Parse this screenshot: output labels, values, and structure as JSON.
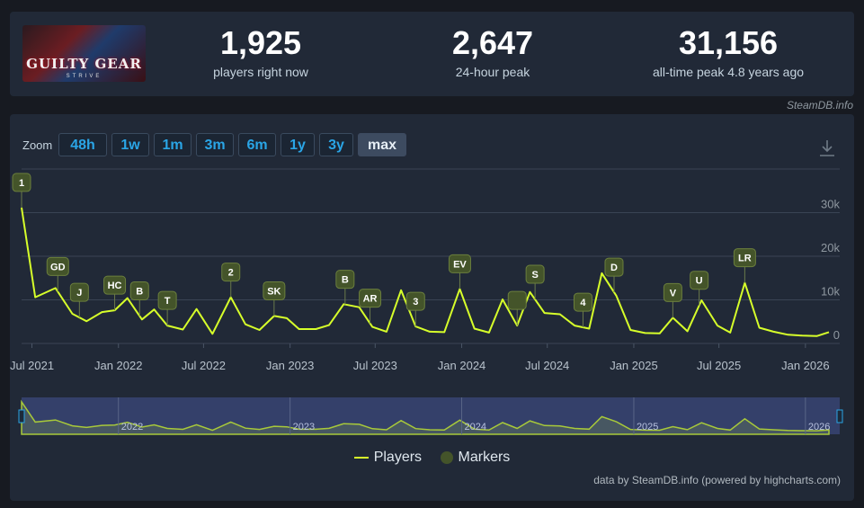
{
  "header": {
    "game_logo_text": "GUILTY GEAR",
    "game_logo_sub": "STRIVE",
    "stats": [
      {
        "value": "1,925",
        "label": "players right now"
      },
      {
        "value": "2,647",
        "label": "24-hour peak"
      },
      {
        "value": "31,156",
        "label": "all-time peak 4.8 years ago"
      }
    ],
    "credit": "SteamDB.info"
  },
  "zoom": {
    "label": "Zoom",
    "buttons": [
      "48h",
      "1w",
      "1m",
      "3m",
      "6m",
      "1y",
      "3y",
      "max"
    ],
    "active": "max"
  },
  "legend": {
    "players": "Players",
    "markers": "Markers"
  },
  "credit_bottom": "data by SteamDB.info (powered by highcharts.com)",
  "colors": {
    "line": "#d7ff2a",
    "marker": "#44542a",
    "navigator_bg": "#34406a"
  },
  "chart_data": {
    "type": "line",
    "ylim": [
      0,
      40000
    ],
    "yticks": [
      0,
      10000,
      20000,
      30000
    ],
    "ytick_labels": [
      "0",
      "10k",
      "20k",
      "30k"
    ],
    "xlim": [
      "2021-06-09",
      "2026-02-20"
    ],
    "xticks": [
      "2021-07-01",
      "2022-01-01",
      "2022-07-01",
      "2023-01-01",
      "2023-07-01",
      "2024-01-01",
      "2024-07-01",
      "2025-01-01",
      "2025-07-01",
      "2026-01-01"
    ],
    "xtick_labels": [
      "Jul 2021",
      "Jan 2022",
      "Jul 2022",
      "Jan 2023",
      "Jul 2023",
      "Jan 2024",
      "Jul 2024",
      "Jan 2025",
      "Jul 2025",
      "Jan 2026"
    ],
    "navigator_labels": [
      "2022",
      "2023",
      "2024",
      "2025",
      "2026"
    ],
    "series": [
      {
        "name": "Players",
        "points": [
          [
            "2021-06-09",
            31156
          ],
          [
            "2021-07-08",
            10600
          ],
          [
            "2021-08-20",
            12700
          ],
          [
            "2021-09-25",
            6800
          ],
          [
            "2021-10-25",
            5100
          ],
          [
            "2021-11-27",
            7200
          ],
          [
            "2021-12-24",
            7600
          ],
          [
            "2022-01-20",
            10400
          ],
          [
            "2022-02-20",
            5500
          ],
          [
            "2022-03-18",
            7800
          ],
          [
            "2022-04-15",
            4100
          ],
          [
            "2022-05-18",
            3200
          ],
          [
            "2022-06-16",
            7900
          ],
          [
            "2022-07-20",
            2200
          ],
          [
            "2022-08-28",
            10600
          ],
          [
            "2022-09-28",
            4400
          ],
          [
            "2022-10-28",
            3100
          ],
          [
            "2022-11-28",
            6300
          ],
          [
            "2022-12-25",
            5800
          ],
          [
            "2023-01-20",
            3300
          ],
          [
            "2023-02-25",
            3300
          ],
          [
            "2023-03-25",
            4200
          ],
          [
            "2023-04-25",
            9000
          ],
          [
            "2023-05-28",
            8300
          ],
          [
            "2023-06-25",
            3800
          ],
          [
            "2023-07-25",
            2700
          ],
          [
            "2023-08-25",
            12200
          ],
          [
            "2023-09-25",
            3900
          ],
          [
            "2023-10-25",
            2700
          ],
          [
            "2023-11-25",
            2600
          ],
          [
            "2023-12-28",
            12500
          ],
          [
            "2024-01-28",
            3400
          ],
          [
            "2024-02-28",
            2500
          ],
          [
            "2024-03-28",
            10100
          ],
          [
            "2024-04-28",
            4100
          ],
          [
            "2024-05-25",
            11800
          ],
          [
            "2024-06-25",
            7000
          ],
          [
            "2024-07-28",
            6700
          ],
          [
            "2024-08-28",
            4100
          ],
          [
            "2024-09-28",
            3400
          ],
          [
            "2024-10-25",
            16100
          ],
          [
            "2024-11-25",
            10900
          ],
          [
            "2024-12-25",
            3100
          ],
          [
            "2025-01-25",
            2400
          ],
          [
            "2025-02-25",
            2300
          ],
          [
            "2025-03-25",
            5900
          ],
          [
            "2025-04-25",
            2800
          ],
          [
            "2025-05-25",
            9900
          ],
          [
            "2025-06-28",
            4100
          ],
          [
            "2025-07-25",
            2500
          ],
          [
            "2025-08-25",
            13900
          ],
          [
            "2025-09-25",
            3600
          ],
          [
            "2025-10-25",
            2700
          ],
          [
            "2025-11-25",
            2000
          ],
          [
            "2025-12-25",
            1800
          ],
          [
            "2026-01-25",
            1700
          ],
          [
            "2026-02-20",
            2600
          ]
        ]
      }
    ],
    "markers": [
      {
        "label": "1",
        "date": "2021-06-09"
      },
      {
        "label": "GD",
        "date": "2021-08-25"
      },
      {
        "label": "J",
        "date": "2021-10-10"
      },
      {
        "label": "HC",
        "date": "2021-12-24"
      },
      {
        "label": "B",
        "date": "2022-02-15"
      },
      {
        "label": "T",
        "date": "2022-04-15"
      },
      {
        "label": "2",
        "date": "2022-08-28"
      },
      {
        "label": "SK",
        "date": "2022-11-28"
      },
      {
        "label": "B",
        "date": "2023-04-28"
      },
      {
        "label": "AR",
        "date": "2023-06-20"
      },
      {
        "label": "3",
        "date": "2023-09-25"
      },
      {
        "label": "EV",
        "date": "2023-12-28"
      },
      {
        "label": "",
        "date": "2024-04-28"
      },
      {
        "label": "S",
        "date": "2024-06-05"
      },
      {
        "label": "4",
        "date": "2024-09-15"
      },
      {
        "label": "D",
        "date": "2024-11-20"
      },
      {
        "label": "V",
        "date": "2025-03-25"
      },
      {
        "label": "U",
        "date": "2025-05-20"
      },
      {
        "label": "LR",
        "date": "2025-08-25"
      }
    ]
  }
}
